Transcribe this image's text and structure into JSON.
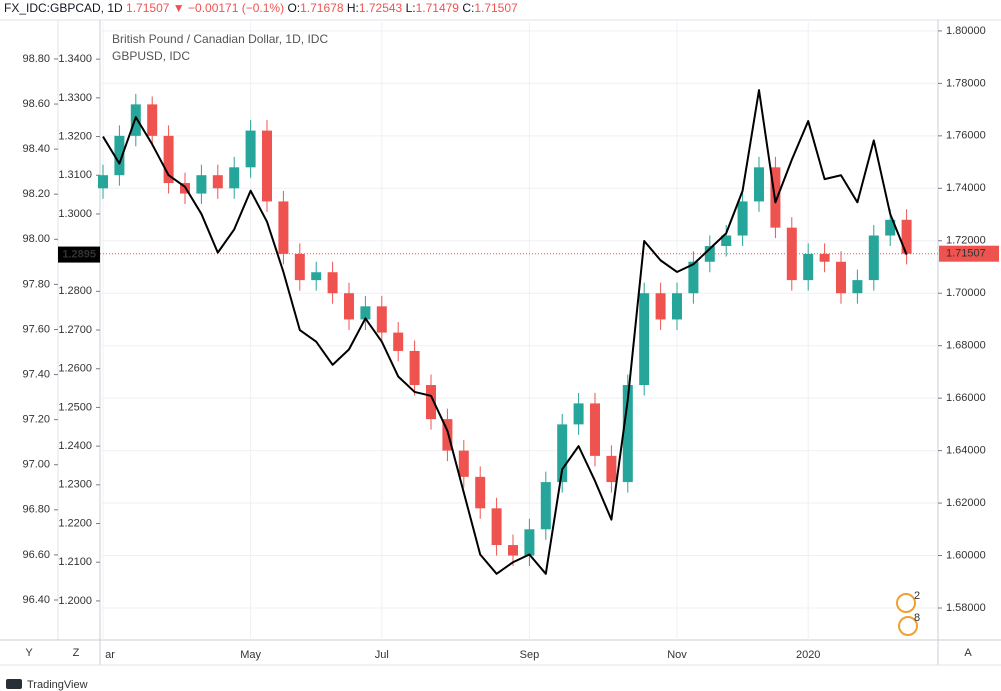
{
  "header": {
    "symbol": "FX_IDC:GBPCAD, 1D",
    "last": "1.71507",
    "arrow": "▼",
    "change": "−0.00171 (−0.1%)",
    "o_label": "O:",
    "o": "1.71678",
    "h_label": "H:",
    "h": "1.72543",
    "l_label": "L:",
    "l": "1.71479",
    "c_label": "C:",
    "c": "1.71507"
  },
  "toolbar": {
    "left": [
      "Y",
      "Z"
    ],
    "right": "A"
  },
  "badges": [
    "2",
    "8"
  ],
  "footer": {
    "brand": "TradingView"
  },
  "chart_data": {
    "type": "candlestick",
    "grid": true,
    "categories": [
      "ar",
      null,
      null,
      null,
      null,
      null,
      null,
      null,
      null,
      "May",
      null,
      null,
      null,
      null,
      null,
      null,
      null,
      "Jul",
      null,
      null,
      null,
      null,
      null,
      null,
      null,
      null,
      "Sep",
      null,
      null,
      null,
      null,
      null,
      null,
      null,
      null,
      "Nov",
      null,
      null,
      null,
      null,
      null,
      null,
      null,
      "2020",
      null,
      null,
      null,
      null,
      null,
      null
    ],
    "series": [
      {
        "name": "British Pound / Canadian Dollar, 1D, IDC",
        "type": "candlestick",
        "up_color": "#26a69a",
        "down_color": "#ef5350",
        "open": [
          1.74,
          1.745,
          1.76,
          1.772,
          1.76,
          1.742,
          1.738,
          1.745,
          1.74,
          1.748,
          1.762,
          1.735,
          1.715,
          1.705,
          1.708,
          1.7,
          1.69,
          1.695,
          1.685,
          1.678,
          1.665,
          1.652,
          1.64,
          1.63,
          1.618,
          1.604,
          1.6,
          1.61,
          1.628,
          1.65,
          1.658,
          1.638,
          1.628,
          1.665,
          1.7,
          1.69,
          1.7,
          1.712,
          1.718,
          1.722,
          1.735,
          1.748,
          1.725,
          1.705,
          1.715,
          1.712,
          1.7,
          1.705,
          1.722,
          1.728
        ],
        "high": [
          1.749,
          1.764,
          1.776,
          1.775,
          1.764,
          1.746,
          1.749,
          1.749,
          1.752,
          1.766,
          1.766,
          1.739,
          1.719,
          1.712,
          1.712,
          1.704,
          1.699,
          1.699,
          1.689,
          1.682,
          1.669,
          1.656,
          1.644,
          1.634,
          1.622,
          1.608,
          1.614,
          1.632,
          1.654,
          1.662,
          1.662,
          1.642,
          1.669,
          1.704,
          1.704,
          1.704,
          1.716,
          1.722,
          1.726,
          1.739,
          1.752,
          1.752,
          1.729,
          1.719,
          1.719,
          1.716,
          1.709,
          1.726,
          1.732,
          1.732
        ],
        "low": [
          1.736,
          1.741,
          1.756,
          1.756,
          1.738,
          1.734,
          1.734,
          1.736,
          1.736,
          1.744,
          1.731,
          1.711,
          1.701,
          1.701,
          1.696,
          1.686,
          1.686,
          1.681,
          1.674,
          1.661,
          1.648,
          1.636,
          1.626,
          1.614,
          1.6,
          1.596,
          1.596,
          1.606,
          1.624,
          1.646,
          1.634,
          1.624,
          1.624,
          1.661,
          1.686,
          1.686,
          1.696,
          1.708,
          1.714,
          1.718,
          1.731,
          1.721,
          1.701,
          1.701,
          1.708,
          1.696,
          1.696,
          1.701,
          1.718,
          1.711
        ],
        "close": [
          1.745,
          1.76,
          1.772,
          1.76,
          1.742,
          1.738,
          1.745,
          1.74,
          1.748,
          1.762,
          1.735,
          1.715,
          1.705,
          1.708,
          1.7,
          1.69,
          1.695,
          1.685,
          1.678,
          1.665,
          1.652,
          1.64,
          1.63,
          1.618,
          1.604,
          1.6,
          1.61,
          1.628,
          1.65,
          1.658,
          1.638,
          1.628,
          1.665,
          1.7,
          1.69,
          1.7,
          1.712,
          1.718,
          1.722,
          1.735,
          1.748,
          1.725,
          1.705,
          1.715,
          1.712,
          1.7,
          1.705,
          1.722,
          1.728,
          1.71507
        ]
      },
      {
        "name": "GBPUSD, IDC",
        "type": "line",
        "axis": "y2",
        "color": "#000000",
        "values": [
          1.32,
          1.313,
          1.325,
          1.318,
          1.31,
          1.307,
          1.3,
          1.29,
          1.296,
          1.306,
          1.298,
          1.285,
          1.27,
          1.267,
          1.261,
          1.265,
          1.273,
          1.267,
          1.258,
          1.254,
          1.253,
          1.244,
          1.228,
          1.212,
          1.207,
          1.21,
          1.212,
          1.207,
          1.234,
          1.24,
          1.231,
          1.221,
          1.252,
          1.293,
          1.288,
          1.285,
          1.287,
          1.291,
          1.295,
          1.306,
          1.332,
          1.303,
          1.314,
          1.324,
          1.309,
          1.31,
          1.303,
          1.319,
          1.3,
          1.2895
        ]
      }
    ],
    "ylim": [
      1.5678,
      1.8034
    ],
    "yticks": [
      {
        "value": 1.58,
        "label": "1.58000"
      },
      {
        "value": 1.6,
        "label": "1.60000"
      },
      {
        "value": 1.62,
        "label": "1.62000"
      },
      {
        "value": 1.64,
        "label": "1.64000"
      },
      {
        "value": 1.66,
        "label": "1.66000"
      },
      {
        "value": 1.68,
        "label": "1.68000"
      },
      {
        "value": 1.7,
        "label": "1.70000"
      },
      {
        "value": 1.72,
        "label": "1.72000"
      },
      {
        "value": 1.74,
        "label": "1.74000"
      },
      {
        "value": 1.76,
        "label": "1.76000"
      },
      {
        "value": 1.78,
        "label": "1.78000"
      },
      {
        "value": 1.8,
        "label": "1.80000"
      }
    ],
    "y2lim": [
      1.1899,
      1.3496
    ],
    "y2ticks": [
      {
        "value": 1.2,
        "label": "1.2000"
      },
      {
        "value": 1.21,
        "label": "1.2100"
      },
      {
        "value": 1.22,
        "label": "1.2200"
      },
      {
        "value": 1.23,
        "label": "1.2300"
      },
      {
        "value": 1.24,
        "label": "1.2400"
      },
      {
        "value": 1.25,
        "label": "1.2500"
      },
      {
        "value": 1.26,
        "label": "1.2600"
      },
      {
        "value": 1.27,
        "label": "1.2700"
      },
      {
        "value": 1.28,
        "label": "1.2800"
      },
      {
        "value": 1.29,
        "label": "1.2900"
      },
      {
        "value": 1.3,
        "label": "1.3000"
      },
      {
        "value": 1.31,
        "label": "1.3100"
      },
      {
        "value": 1.32,
        "label": "1.3200"
      },
      {
        "value": 1.33,
        "label": "1.3300"
      },
      {
        "value": 1.34,
        "label": "1.3400"
      }
    ],
    "y3lim": [
      96.2225,
      98.964
    ],
    "y3ticks": [
      {
        "value": 96.4,
        "label": "96.40"
      },
      {
        "value": 96.6,
        "label": "96.60"
      },
      {
        "value": 96.8,
        "label": "96.80"
      },
      {
        "value": 97.0,
        "label": "97.00"
      },
      {
        "value": 97.2,
        "label": "97.20"
      },
      {
        "value": 97.4,
        "label": "97.40"
      },
      {
        "value": 97.6,
        "label": "97.60"
      },
      {
        "value": 97.8,
        "label": "97.80"
      },
      {
        "value": 98.0,
        "label": "98.00"
      },
      {
        "value": 98.2,
        "label": "98.20"
      },
      {
        "value": 98.4,
        "label": "98.40"
      },
      {
        "value": 98.6,
        "label": "98.60"
      },
      {
        "value": 98.8,
        "label": "98.80"
      }
    ],
    "price_line_color": "#ef5350"
  }
}
